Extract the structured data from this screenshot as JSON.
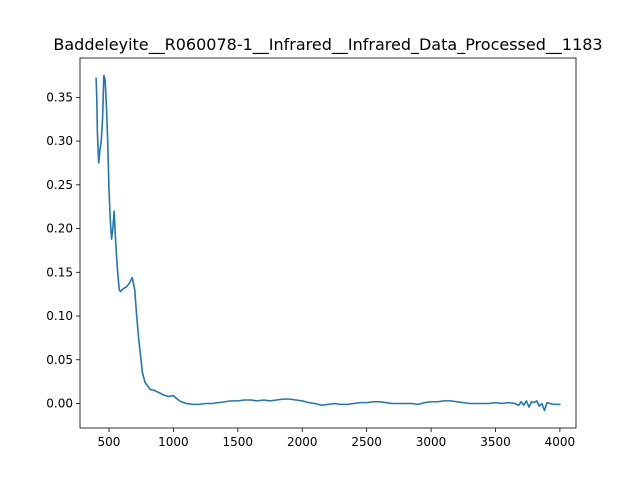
{
  "chart_data": {
    "type": "line",
    "title": "Baddeleyite__R060078-1__Infrared__Infrared_Data_Processed__1183",
    "xlabel": "",
    "ylabel": "",
    "xlim": [
      275,
      4125
    ],
    "ylim": [
      -0.028,
      0.395
    ],
    "grid": false,
    "legend": "none",
    "x_ticks": [
      500,
      1000,
      1500,
      2000,
      2500,
      3000,
      3500,
      4000
    ],
    "x_tick_labels": [
      "500",
      "1000",
      "1500",
      "2000",
      "2500",
      "3000",
      "3500",
      "4000"
    ],
    "y_ticks": [
      0.0,
      0.05,
      0.1,
      0.15,
      0.2,
      0.25,
      0.3,
      0.35
    ],
    "y_tick_labels": [
      "0.00",
      "0.05",
      "0.10",
      "0.15",
      "0.20",
      "0.25",
      "0.30",
      "0.35"
    ],
    "series": [
      {
        "color": "#1f77b4",
        "x": [
          400,
          405,
          410,
          420,
          430,
          440,
          450,
          460,
          470,
          480,
          490,
          500,
          510,
          520,
          530,
          540,
          550,
          560,
          570,
          580,
          590,
          600,
          610,
          620,
          640,
          660,
          680,
          700,
          715,
          730,
          745,
          760,
          780,
          800,
          820,
          850,
          880,
          920,
          960,
          1000,
          1030,
          1060,
          1100,
          1150,
          1200,
          1250,
          1300,
          1350,
          1400,
          1450,
          1500,
          1550,
          1600,
          1650,
          1700,
          1750,
          1800,
          1850,
          1900,
          1950,
          2000,
          2050,
          2100,
          2150,
          2200,
          2250,
          2300,
          2350,
          2400,
          2450,
          2500,
          2550,
          2600,
          2650,
          2700,
          2750,
          2800,
          2850,
          2900,
          2950,
          3000,
          3050,
          3100,
          3150,
          3200,
          3250,
          3300,
          3350,
          3400,
          3450,
          3500,
          3550,
          3600,
          3650,
          3680,
          3700,
          3720,
          3740,
          3760,
          3780,
          3800,
          3820,
          3840,
          3860,
          3880,
          3900,
          3950,
          4000
        ],
        "y": [
          0.372,
          0.35,
          0.31,
          0.275,
          0.29,
          0.3,
          0.325,
          0.375,
          0.37,
          0.34,
          0.3,
          0.245,
          0.21,
          0.188,
          0.2,
          0.22,
          0.19,
          0.165,
          0.145,
          0.13,
          0.128,
          0.13,
          0.131,
          0.132,
          0.134,
          0.138,
          0.144,
          0.13,
          0.1,
          0.075,
          0.055,
          0.035,
          0.024,
          0.02,
          0.016,
          0.015,
          0.013,
          0.01,
          0.008,
          0.009,
          0.005,
          0.002,
          0.0,
          -0.001,
          -0.001,
          0.0,
          0.0,
          0.001,
          0.002,
          0.003,
          0.003,
          0.004,
          0.004,
          0.003,
          0.004,
          0.003,
          0.004,
          0.005,
          0.005,
          0.004,
          0.003,
          0.001,
          0.0,
          -0.002,
          -0.001,
          0.0,
          -0.001,
          -0.001,
          0.0,
          0.001,
          0.001,
          0.002,
          0.002,
          0.001,
          0.0,
          0.0,
          0.0,
          0.0,
          -0.001,
          0.001,
          0.002,
          0.002,
          0.003,
          0.003,
          0.002,
          0.001,
          0.0,
          0.0,
          0.0,
          0.0,
          0.001,
          0.0,
          0.001,
          0.0,
          -0.002,
          0.002,
          -0.002,
          0.003,
          -0.004,
          0.002,
          0.001,
          0.003,
          -0.003,
          0.0,
          -0.008,
          0.001,
          -0.001,
          -0.001
        ]
      }
    ]
  }
}
